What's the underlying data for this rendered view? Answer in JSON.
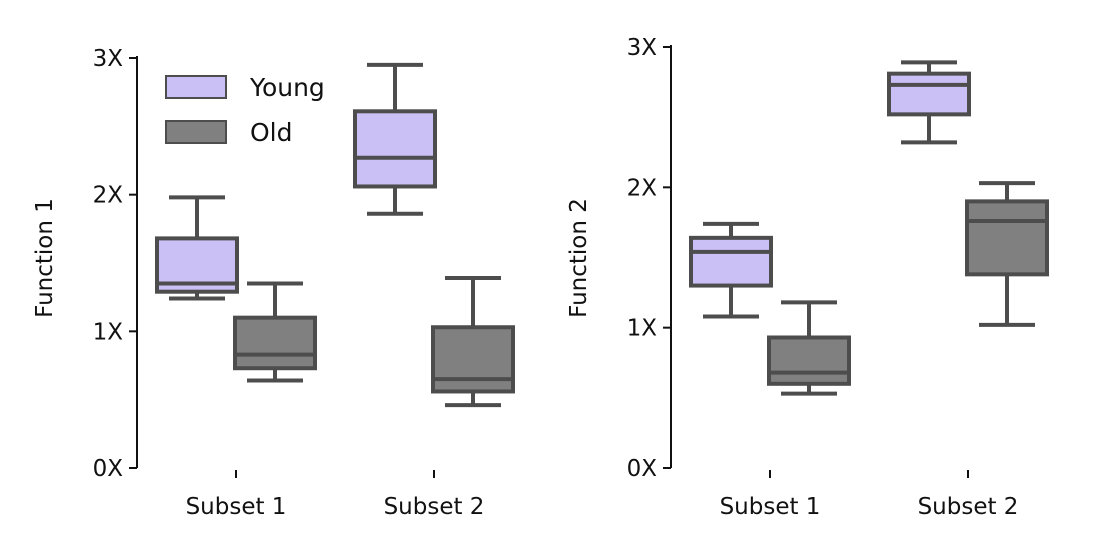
{
  "chart_data": [
    {
      "type": "box",
      "ylabel": "Function 1",
      "categories": [
        "Subset 1",
        "Subset 2"
      ],
      "ylim": [
        0,
        3
      ],
      "yticks": [
        {
          "value": 0,
          "label": "0X"
        },
        {
          "value": 1,
          "label": "1X"
        },
        {
          "value": 2,
          "label": "2X"
        },
        {
          "value": 3,
          "label": "3X"
        }
      ],
      "legend": {
        "placement": "top-left"
      },
      "series": [
        {
          "name": "Young",
          "color": "#cbc0f5",
          "boxes": [
            {
              "whisker_low": 1.24,
              "q1": 1.29,
              "median": 1.35,
              "q3": 1.68,
              "whisker_high": 1.98
            },
            {
              "whisker_low": 1.86,
              "q1": 2.06,
              "median": 2.27,
              "q3": 2.61,
              "whisker_high": 2.95
            }
          ]
        },
        {
          "name": "Old",
          "color": "#808080",
          "boxes": [
            {
              "whisker_low": 0.64,
              "q1": 0.73,
              "median": 0.83,
              "q3": 1.1,
              "whisker_high": 1.35
            },
            {
              "whisker_low": 0.46,
              "q1": 0.56,
              "median": 0.65,
              "q3": 1.03,
              "whisker_high": 1.39
            }
          ]
        }
      ]
    },
    {
      "type": "box",
      "ylabel": "Function 2",
      "categories": [
        "Subset 1",
        "Subset 2"
      ],
      "ylim": [
        0,
        3
      ],
      "yticks": [
        {
          "value": 0,
          "label": "0X"
        },
        {
          "value": 1,
          "label": "1X"
        },
        {
          "value": 2,
          "label": "2X"
        },
        {
          "value": 3,
          "label": "3X"
        }
      ],
      "series": [
        {
          "name": "Young",
          "color": "#cbc0f5",
          "boxes": [
            {
              "whisker_low": 1.08,
              "q1": 1.3,
              "median": 1.54,
              "q3": 1.64,
              "whisker_high": 1.74
            },
            {
              "whisker_low": 2.32,
              "q1": 2.52,
              "median": 2.73,
              "q3": 2.81,
              "whisker_high": 2.89
            }
          ]
        },
        {
          "name": "Old",
          "color": "#808080",
          "boxes": [
            {
              "whisker_low": 0.53,
              "q1": 0.6,
              "median": 0.68,
              "q3": 0.93,
              "whisker_high": 1.18
            },
            {
              "whisker_low": 1.02,
              "q1": 1.38,
              "median": 1.76,
              "q3": 1.9,
              "whisker_high": 2.03
            }
          ]
        }
      ]
    }
  ]
}
